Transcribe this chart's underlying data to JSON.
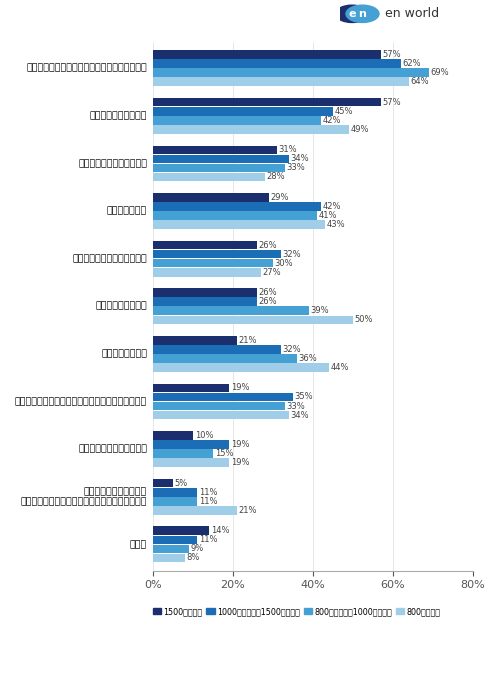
{
  "categories": [
    "その他",
    "柔軟な働き方ができない\n（フレックスタイム制、労働裁量制などがない）",
    "福利厚生が充実していない",
    "企業のビジョン、ミッション、理念に共感できない",
    "評価制度が不明確",
    "給与・賃与への不満",
    "ワークライフバランスの悪さ",
    "成長実感がない",
    "職場の人間関係が良くない",
    "仕事のやりがいがない",
    "マネジメント（経営層・上司）が信頼できない"
  ],
  "series": {
    "1500万円以上": [
      14,
      5,
      10,
      19,
      21,
      26,
      26,
      29,
      31,
      57,
      57
    ],
    "1000万円以上～1500万円未満": [
      11,
      11,
      19,
      35,
      32,
      26,
      32,
      42,
      34,
      45,
      62
    ],
    "800万円以上～1000万円未満": [
      9,
      11,
      15,
      33,
      36,
      39,
      30,
      41,
      33,
      42,
      69
    ],
    "800万円未満": [
      8,
      21,
      19,
      34,
      44,
      50,
      27,
      43,
      28,
      49,
      64
    ]
  },
  "colors": [
    "#1b2f6e",
    "#1b6eb5",
    "#45a0d4",
    "#a0cde8"
  ],
  "xlim": [
    0,
    80
  ],
  "xtick_values": [
    0,
    20,
    40,
    60,
    80
  ],
  "xtick_labels": [
    "0%",
    "20%",
    "40%",
    "60%",
    "80%"
  ],
  "legend_labels": [
    "1500万円以上",
    "1000万円以上～1500万円未満",
    "800万円以上～1000万円未満",
    "800万円未満"
  ],
  "bg_color": "#ffffff"
}
